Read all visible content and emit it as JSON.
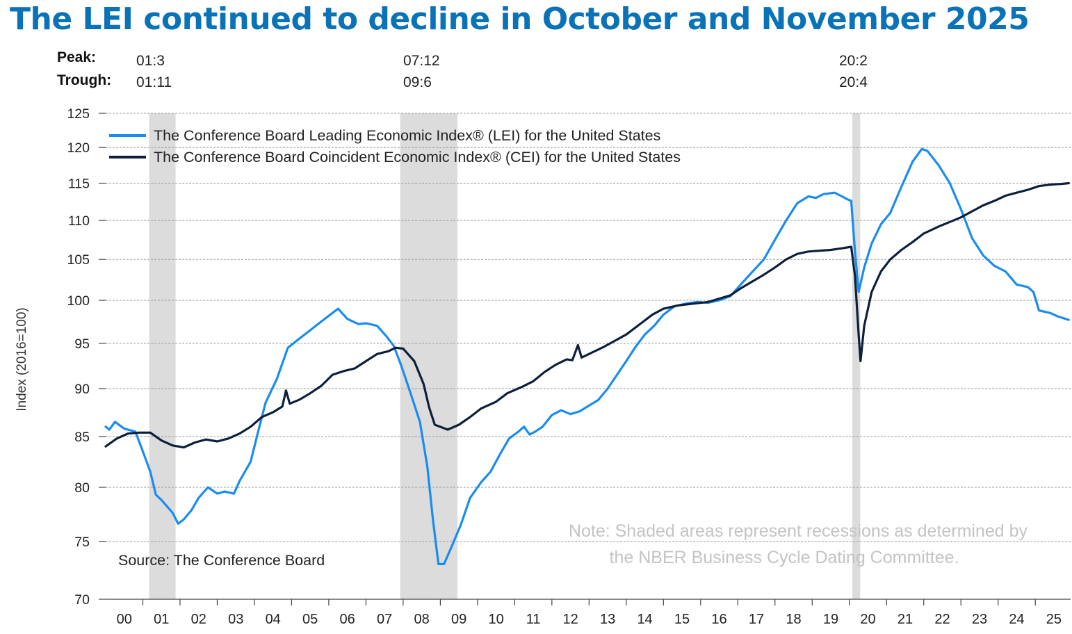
{
  "title": "The LEI continued to decline in October and November 2025",
  "peak_trough": {
    "peak_label": "Peak:",
    "trough_label": "Trough:",
    "dates": [
      {
        "peak": "01:3",
        "trough": "01:11"
      },
      {
        "peak": "07:12",
        "trough": "09:6"
      },
      {
        "peak": "20:2",
        "trough": "20:4"
      }
    ]
  },
  "chart_data": {
    "type": "line",
    "ylabel": "Index (2016=100)",
    "yscale": "log",
    "ylim": [
      70,
      125
    ],
    "yticks": [
      125,
      120,
      115,
      110,
      105,
      100,
      95,
      90,
      85,
      80,
      75,
      70
    ],
    "xlim": [
      2000.0,
      2025.95
    ],
    "xtick_labels": [
      "00",
      "01",
      "02",
      "03",
      "04",
      "05",
      "06",
      "07",
      "08",
      "09",
      "10",
      "11",
      "12",
      "13",
      "14",
      "15",
      "16",
      "17",
      "18",
      "19",
      "20",
      "21",
      "22",
      "23",
      "24",
      "25"
    ],
    "recessions": [
      [
        2001.17,
        2001.88
      ],
      [
        2007.92,
        2009.46
      ],
      [
        2020.08,
        2020.29
      ]
    ],
    "grid": "horizontal dashed",
    "legend_position": "top-left",
    "source": "Source: The Conference Board",
    "note": [
      "Note: Shaded areas represent recessions as determined by",
      "the NBER Business Cycle Dating Committee."
    ],
    "series": [
      {
        "name": "The Conference Board Leading Economic Index® (LEI) for the United States",
        "color": "#1a8cf0",
        "points": [
          [
            2000.0,
            86.0
          ],
          [
            2000.1,
            85.7
          ],
          [
            2000.25,
            86.5
          ],
          [
            2000.5,
            85.8
          ],
          [
            2000.8,
            85.5
          ],
          [
            2001.0,
            83.5
          ],
          [
            2001.2,
            81.5
          ],
          [
            2001.35,
            79.3
          ],
          [
            2001.5,
            78.8
          ],
          [
            2001.8,
            77.6
          ],
          [
            2001.95,
            76.6
          ],
          [
            2002.1,
            77.0
          ],
          [
            2002.3,
            77.8
          ],
          [
            2002.5,
            79.0
          ],
          [
            2002.75,
            80.0
          ],
          [
            2003.0,
            79.4
          ],
          [
            2003.2,
            79.6
          ],
          [
            2003.45,
            79.4
          ],
          [
            2003.6,
            80.6
          ],
          [
            2003.9,
            82.5
          ],
          [
            2004.1,
            85.5
          ],
          [
            2004.3,
            88.5
          ],
          [
            2004.6,
            91.0
          ],
          [
            2004.9,
            94.5
          ],
          [
            2005.2,
            95.5
          ],
          [
            2005.5,
            96.5
          ],
          [
            2005.8,
            97.5
          ],
          [
            2006.1,
            98.5
          ],
          [
            2006.25,
            99.0
          ],
          [
            2006.5,
            97.8
          ],
          [
            2006.8,
            97.2
          ],
          [
            2007.0,
            97.3
          ],
          [
            2007.3,
            97.0
          ],
          [
            2007.55,
            95.8
          ],
          [
            2007.75,
            94.7
          ],
          [
            2007.95,
            92.5
          ],
          [
            2008.2,
            89.5
          ],
          [
            2008.45,
            86.5
          ],
          [
            2008.65,
            82.0
          ],
          [
            2008.8,
            77.0
          ],
          [
            2008.95,
            73.0
          ],
          [
            2009.1,
            73.0
          ],
          [
            2009.3,
            74.5
          ],
          [
            2009.55,
            76.5
          ],
          [
            2009.8,
            79.0
          ],
          [
            2010.1,
            80.5
          ],
          [
            2010.35,
            81.5
          ],
          [
            2010.6,
            83.2
          ],
          [
            2010.85,
            84.8
          ],
          [
            2011.1,
            85.5
          ],
          [
            2011.25,
            86.0
          ],
          [
            2011.4,
            85.2
          ],
          [
            2011.55,
            85.5
          ],
          [
            2011.75,
            86.0
          ],
          [
            2012.0,
            87.2
          ],
          [
            2012.25,
            87.7
          ],
          [
            2012.5,
            87.3
          ],
          [
            2012.75,
            87.6
          ],
          [
            2013.0,
            88.2
          ],
          [
            2013.25,
            88.8
          ],
          [
            2013.5,
            90.0
          ],
          [
            2013.75,
            91.5
          ],
          [
            2014.0,
            93.0
          ],
          [
            2014.25,
            94.6
          ],
          [
            2014.5,
            96.0
          ],
          [
            2014.75,
            97.0
          ],
          [
            2015.0,
            98.3
          ],
          [
            2015.3,
            99.3
          ],
          [
            2015.6,
            99.6
          ],
          [
            2015.9,
            99.8
          ],
          [
            2016.2,
            99.7
          ],
          [
            2016.5,
            100.0
          ],
          [
            2016.8,
            100.5
          ],
          [
            2017.1,
            102.0
          ],
          [
            2017.4,
            103.5
          ],
          [
            2017.7,
            105.0
          ],
          [
            2018.0,
            107.5
          ],
          [
            2018.3,
            110.0
          ],
          [
            2018.6,
            112.3
          ],
          [
            2018.9,
            113.2
          ],
          [
            2019.1,
            113.0
          ],
          [
            2019.3,
            113.5
          ],
          [
            2019.6,
            113.7
          ],
          [
            2019.8,
            113.2
          ],
          [
            2019.95,
            112.8
          ],
          [
            2020.05,
            112.6
          ],
          [
            2020.15,
            106.0
          ],
          [
            2020.25,
            101.0
          ],
          [
            2020.4,
            104.0
          ],
          [
            2020.6,
            107.0
          ],
          [
            2020.85,
            109.5
          ],
          [
            2021.1,
            111.0
          ],
          [
            2021.4,
            114.5
          ],
          [
            2021.7,
            118.0
          ],
          [
            2021.95,
            119.8
          ],
          [
            2022.1,
            119.5
          ],
          [
            2022.4,
            117.5
          ],
          [
            2022.7,
            115.0
          ],
          [
            2023.0,
            111.5
          ],
          [
            2023.3,
            107.7
          ],
          [
            2023.6,
            105.5
          ],
          [
            2023.9,
            104.2
          ],
          [
            2024.2,
            103.5
          ],
          [
            2024.5,
            101.9
          ],
          [
            2024.8,
            101.6
          ],
          [
            2024.95,
            101.0
          ],
          [
            2025.1,
            98.8
          ],
          [
            2025.4,
            98.5
          ],
          [
            2025.6,
            98.1
          ],
          [
            2025.9,
            97.7
          ]
        ]
      },
      {
        "name": "The Conference Board Coincident Economic Index® (CEI) for the United States",
        "color": "#0c1f3b",
        "points": [
          [
            2000.0,
            84.0
          ],
          [
            2000.3,
            84.8
          ],
          [
            2000.6,
            85.3
          ],
          [
            2000.9,
            85.4
          ],
          [
            2001.2,
            85.4
          ],
          [
            2001.5,
            84.6
          ],
          [
            2001.8,
            84.1
          ],
          [
            2002.1,
            83.9
          ],
          [
            2002.4,
            84.4
          ],
          [
            2002.7,
            84.7
          ],
          [
            2003.0,
            84.5
          ],
          [
            2003.3,
            84.8
          ],
          [
            2003.6,
            85.3
          ],
          [
            2003.9,
            86.0
          ],
          [
            2004.2,
            87.0
          ],
          [
            2004.5,
            87.5
          ],
          [
            2004.75,
            88.1
          ],
          [
            2004.85,
            89.8
          ],
          [
            2004.95,
            88.4
          ],
          [
            2005.2,
            88.8
          ],
          [
            2005.5,
            89.5
          ],
          [
            2005.8,
            90.3
          ],
          [
            2006.1,
            91.5
          ],
          [
            2006.4,
            91.9
          ],
          [
            2006.7,
            92.2
          ],
          [
            2007.0,
            93.0
          ],
          [
            2007.3,
            93.8
          ],
          [
            2007.6,
            94.1
          ],
          [
            2007.8,
            94.5
          ],
          [
            2008.0,
            94.4
          ],
          [
            2008.3,
            93.0
          ],
          [
            2008.55,
            90.5
          ],
          [
            2008.7,
            88.0
          ],
          [
            2008.85,
            86.2
          ],
          [
            2009.2,
            85.7
          ],
          [
            2009.5,
            86.2
          ],
          [
            2009.8,
            87.0
          ],
          [
            2010.1,
            87.9
          ],
          [
            2010.5,
            88.6
          ],
          [
            2010.8,
            89.5
          ],
          [
            2011.2,
            90.2
          ],
          [
            2011.5,
            90.8
          ],
          [
            2011.8,
            91.8
          ],
          [
            2012.1,
            92.6
          ],
          [
            2012.4,
            93.2
          ],
          [
            2012.55,
            93.1
          ],
          [
            2012.7,
            94.8
          ],
          [
            2012.8,
            93.4
          ],
          [
            2013.1,
            94.0
          ],
          [
            2013.4,
            94.6
          ],
          [
            2013.7,
            95.3
          ],
          [
            2014.0,
            96.0
          ],
          [
            2014.4,
            97.3
          ],
          [
            2014.7,
            98.3
          ],
          [
            2015.0,
            99.0
          ],
          [
            2015.4,
            99.4
          ],
          [
            2015.8,
            99.6
          ],
          [
            2016.2,
            99.8
          ],
          [
            2016.5,
            100.2
          ],
          [
            2016.8,
            100.6
          ],
          [
            2017.1,
            101.5
          ],
          [
            2017.4,
            102.3
          ],
          [
            2017.7,
            103.1
          ],
          [
            2018.0,
            104.0
          ],
          [
            2018.3,
            105.0
          ],
          [
            2018.6,
            105.7
          ],
          [
            2018.9,
            106.0
          ],
          [
            2019.2,
            106.1
          ],
          [
            2019.5,
            106.2
          ],
          [
            2019.8,
            106.4
          ],
          [
            2020.05,
            106.6
          ],
          [
            2020.15,
            103.0
          ],
          [
            2020.25,
            96.0
          ],
          [
            2020.3,
            93.0
          ],
          [
            2020.4,
            97.0
          ],
          [
            2020.6,
            101.0
          ],
          [
            2020.85,
            103.5
          ],
          [
            2021.1,
            105.0
          ],
          [
            2021.4,
            106.2
          ],
          [
            2021.7,
            107.2
          ],
          [
            2022.0,
            108.3
          ],
          [
            2022.4,
            109.2
          ],
          [
            2022.7,
            109.8
          ],
          [
            2023.0,
            110.4
          ],
          [
            2023.3,
            111.2
          ],
          [
            2023.6,
            112.0
          ],
          [
            2023.9,
            112.6
          ],
          [
            2024.2,
            113.3
          ],
          [
            2024.5,
            113.7
          ],
          [
            2024.8,
            114.1
          ],
          [
            2025.1,
            114.6
          ],
          [
            2025.4,
            114.8
          ],
          [
            2025.7,
            114.9
          ],
          [
            2025.9,
            115.0
          ]
        ]
      }
    ]
  }
}
